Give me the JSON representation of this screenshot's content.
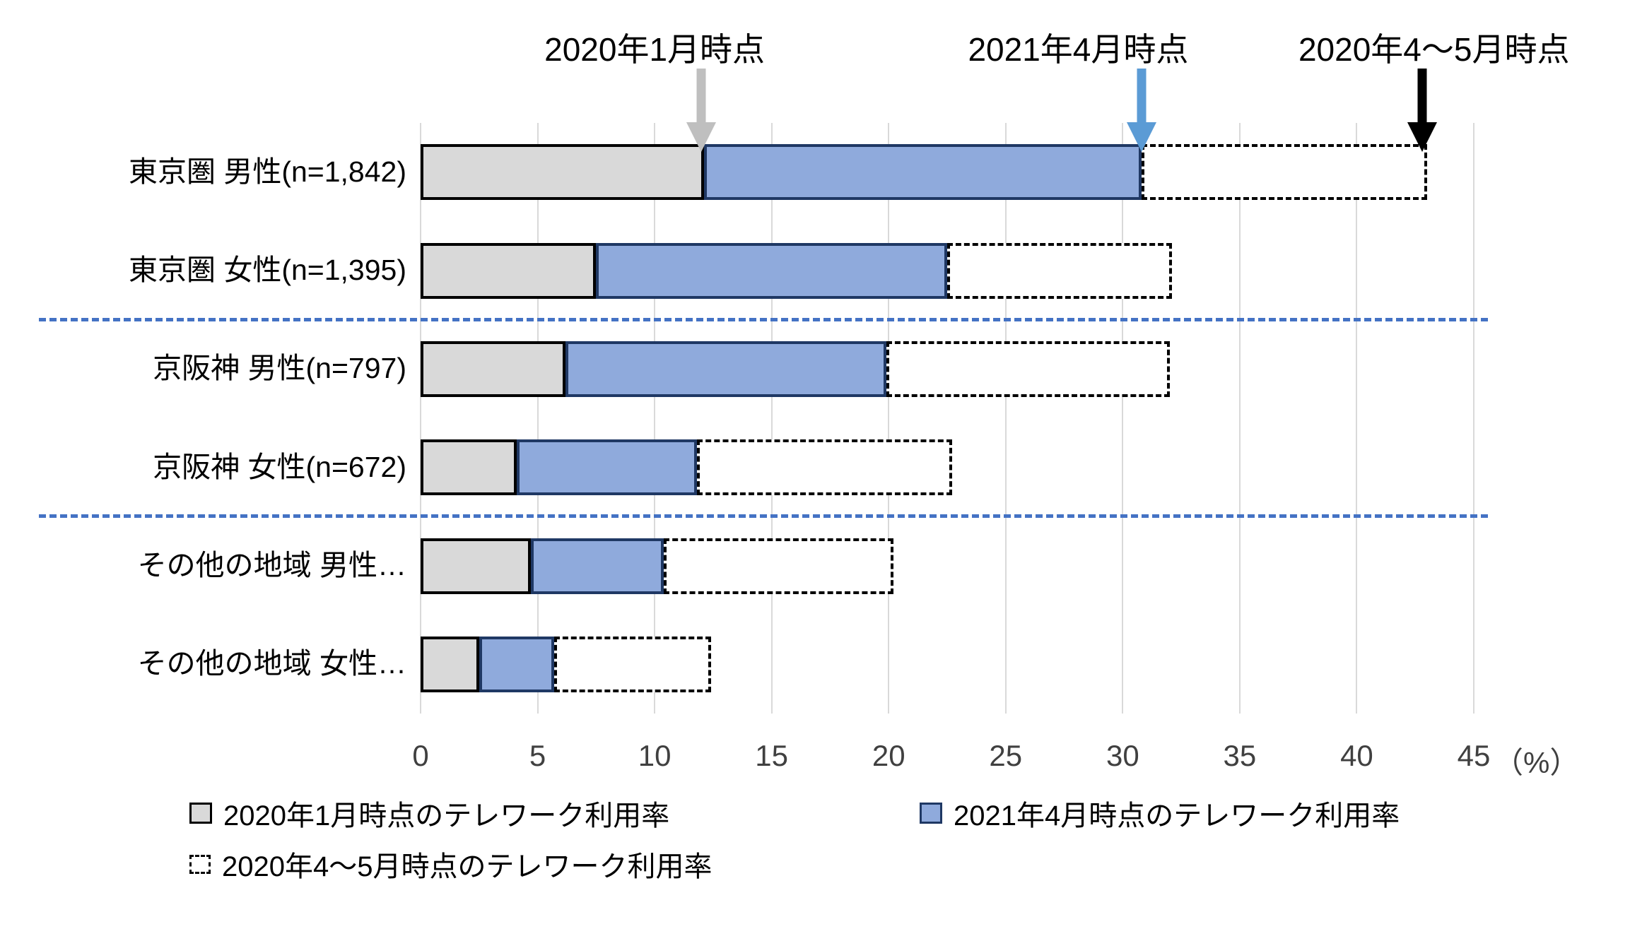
{
  "chart_data": {
    "type": "bar",
    "orientation": "horizontal",
    "title": "",
    "xlabel": "",
    "ylabel": "",
    "x_unit_label": "（%）",
    "xlim": [
      0,
      45
    ],
    "x_ticks": [
      0,
      5,
      10,
      15,
      20,
      25,
      30,
      35,
      40,
      45
    ],
    "grid": true,
    "categories": [
      "東京圏 男性(n=1,842)",
      "東京圏 女性(n=1,395)",
      "京阪神 男性(n=797)",
      "京阪神 女性(n=672)",
      "その他の地域 男性…",
      "その他の地域 女性…"
    ],
    "series": [
      {
        "name": "2020年1月時点のテレワーク利用率",
        "style": "gray-fill",
        "values": [
          12.1,
          7.5,
          6.2,
          4.1,
          4.7,
          2.5
        ]
      },
      {
        "name": "2021年4月時点のテレワーク利用率",
        "style": "blue-fill",
        "values": [
          30.8,
          22.5,
          19.9,
          11.8,
          10.4,
          5.7
        ]
      },
      {
        "name": "2020年4〜5月時点のテレワーク利用率",
        "style": "dashed-outline",
        "values": [
          43.0,
          32.1,
          32.0,
          22.7,
          20.2,
          12.4
        ]
      }
    ],
    "series_note": "values are cumulative bar endpoints in %: gray segment 0→s1, blue segment s1→s2, dashed outline segment s2→s3",
    "group_dividers_after_rows": [
      2,
      4
    ],
    "annotations": [
      {
        "text": "2020年1月時点",
        "arrow_x_value": 12.0,
        "label_x_value": 10.0,
        "arrow_color": "#bfbfbf"
      },
      {
        "text": "2021年4月時点",
        "arrow_x_value": 30.8,
        "label_x_value": 28.1,
        "arrow_color": "#5b9bd5"
      },
      {
        "text": "2020年4〜5月時点",
        "arrow_x_value": 42.8,
        "label_x_value": 43.3,
        "arrow_color": "#000000"
      }
    ],
    "legend": [
      {
        "label": "2020年1月時点のテレワーク利用率",
        "swatch": "gray-fill",
        "row": 1,
        "col": 1
      },
      {
        "label": "2021年4月時点のテレワーク利用率",
        "swatch": "blue-fill",
        "row": 1,
        "col": 2
      },
      {
        "label": "2020年4〜5月時点のテレワーク利用率",
        "swatch": "dashed-outline",
        "row": 2,
        "col": 1
      }
    ],
    "legend_position": "bottom"
  },
  "colors": {
    "gray_fill": "#d9d9d9",
    "gray_border": "#000000",
    "blue_fill": "#8faadc",
    "blue_border": "#1f3864",
    "dashed_fill": "#ffffff",
    "dashed_border": "#000000",
    "gridline": "#d9d9d9",
    "divider_dashed": "#4472c4",
    "arrow_gray": "#bfbfbf",
    "arrow_blue": "#5b9bd5",
    "arrow_black": "#000000",
    "tick_text": "#404040",
    "text": "#000000",
    "background": "#ffffff"
  }
}
